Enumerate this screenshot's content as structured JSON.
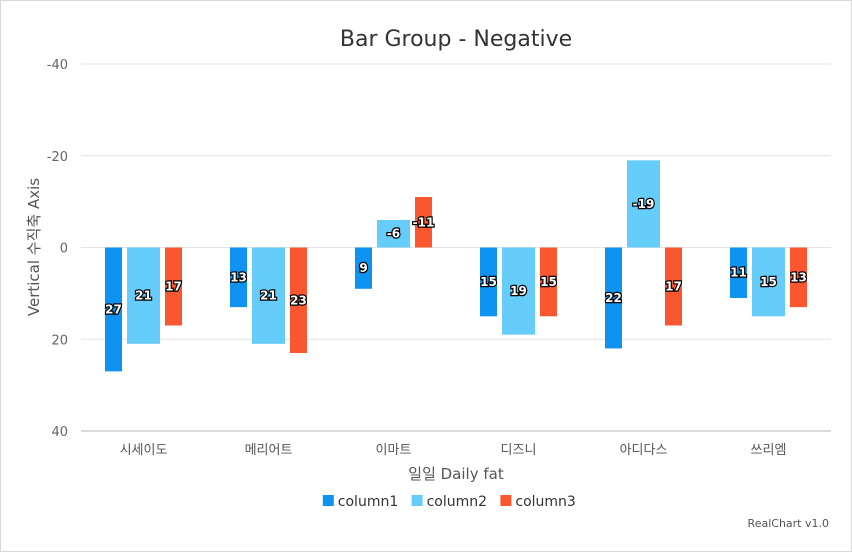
{
  "chart_data": {
    "type": "bar",
    "title": "Bar Group - Negative",
    "xlabel": "일일 Daily fat",
    "ylabel": "Vertical 수직축 Axis",
    "y_reversed": true,
    "ylim": [
      -40,
      40
    ],
    "yticks": [
      -40,
      -20,
      0,
      20,
      40
    ],
    "categories": [
      "시세이도",
      "메리어트",
      "이마트",
      "디즈니",
      "아디다스",
      "쓰리엠"
    ],
    "series": [
      {
        "name": "column1",
        "color": "#0f93f0",
        "values": [
          27,
          13,
          9,
          15,
          22,
          11
        ]
      },
      {
        "name": "column2",
        "color": "#66cdfa",
        "values": [
          21,
          21,
          -6,
          19,
          -19,
          15
        ]
      },
      {
        "name": "column3",
        "color": "#f8572f",
        "values": [
          17,
          23,
          -11,
          15,
          17,
          13
        ]
      }
    ],
    "grid": true,
    "legend_position": "bottom"
  },
  "credit": "RealChart v1.0"
}
